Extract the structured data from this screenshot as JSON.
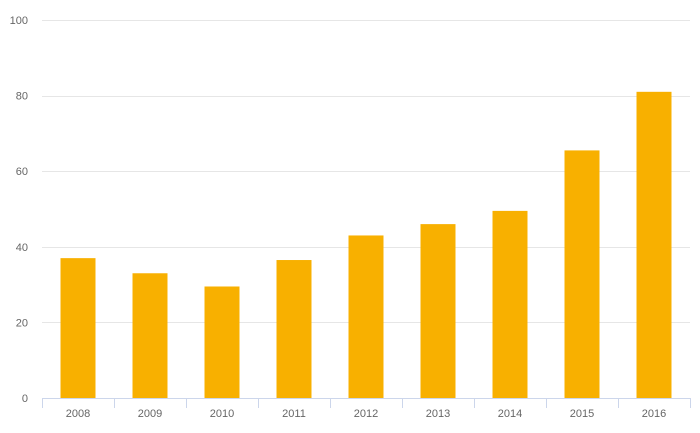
{
  "chart_data": {
    "type": "bar",
    "categories": [
      "2008",
      "2009",
      "2010",
      "2011",
      "2012",
      "2013",
      "2014",
      "2015",
      "2016"
    ],
    "values": [
      37,
      33,
      29.5,
      36.5,
      43,
      46,
      49.5,
      65.5,
      81
    ],
    "ylim": [
      0,
      100
    ],
    "yticks": [
      0,
      20,
      40,
      60,
      80,
      100
    ],
    "grid": true,
    "legend": "none",
    "colors": {
      "bar": "#f8b000",
      "grid": "#e6e6e6",
      "axis": "#ccd6eb",
      "label": "#666666"
    }
  }
}
